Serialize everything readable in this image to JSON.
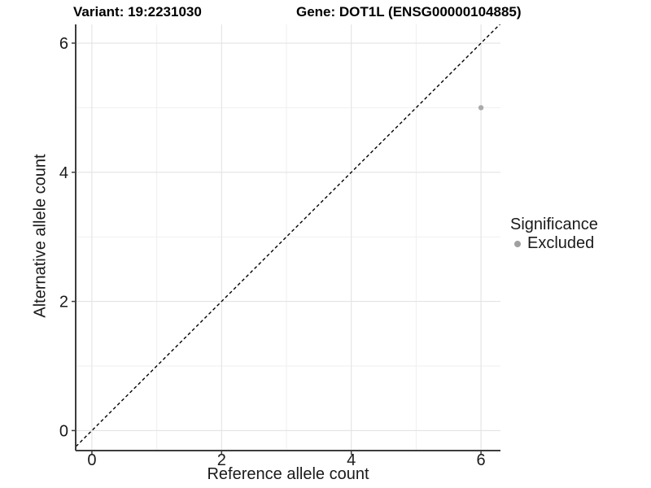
{
  "chart_data": {
    "type": "scatter",
    "title_variant": "Variant: 19:2231030",
    "title_gene": "Gene: DOT1L (ENSG00000104885)",
    "xlabel": "Reference allele count",
    "ylabel": "Alternative allele count",
    "xlim": [
      -0.25,
      6.3
    ],
    "ylim": [
      -0.31,
      6.29
    ],
    "xticks": [
      0,
      2,
      4,
      6
    ],
    "yticks": [
      0,
      2,
      4,
      6
    ],
    "xticks_minor": [
      1,
      3,
      5
    ],
    "yticks_minor": [
      1,
      3,
      5
    ],
    "grid": true,
    "identity_line": {
      "equation": "y = x",
      "style": "dashed",
      "color": "#000000"
    },
    "points": [
      {
        "x": 6,
        "y": 5,
        "significance": "Excluded"
      }
    ],
    "point_color": "#aaaaaa",
    "point_radius": 3.2,
    "legend": {
      "title": "Significance",
      "position": "right",
      "items": [
        {
          "label": "Excluded",
          "color": "#a0a0a0"
        }
      ]
    },
    "colors": {
      "background": "#ffffff",
      "grid_major": "#e3e3e3",
      "grid_minor": "#efefef",
      "axis_line": "#3d3d3d",
      "tick_text": "#1a1a1a"
    }
  }
}
